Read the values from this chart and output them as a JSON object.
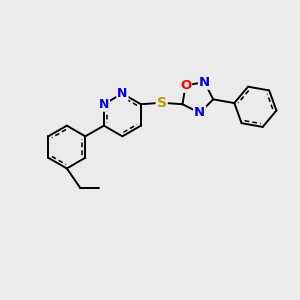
{
  "background_color": "#ebebeb",
  "S_color": "#b8a000",
  "O_color": "#ff0000",
  "N_color": "#0000ee",
  "bond_color": "#000000",
  "bond_lw": 1.4,
  "figsize": [
    3.0,
    3.0
  ],
  "dpi": 100,
  "xlim": [
    0,
    10
  ],
  "ylim": [
    0,
    10
  ]
}
